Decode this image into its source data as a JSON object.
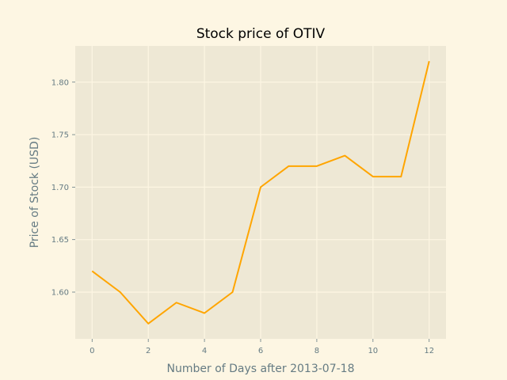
{
  "chart_data": {
    "type": "line",
    "title": "Stock price of OTIV",
    "xlabel": "Number of Days after 2013-07-18",
    "ylabel": "Price of Stock (USD)",
    "x": [
      0,
      1,
      2,
      3,
      4,
      5,
      6,
      7,
      8,
      9,
      10,
      11,
      12
    ],
    "series": [
      {
        "values": [
          1.62,
          1.6,
          1.57,
          1.59,
          1.58,
          1.6,
          1.7,
          1.72,
          1.72,
          1.73,
          1.71,
          1.71,
          1.82
        ],
        "color": "#ffa500"
      }
    ],
    "xlim": [
      -0.6,
      12.6
    ],
    "ylim": [
      1.5555,
      1.8345
    ],
    "xticks": [
      0,
      2,
      4,
      6,
      8,
      10,
      12
    ],
    "xtick_labels": [
      "0",
      "2",
      "4",
      "6",
      "8",
      "10",
      "12"
    ],
    "yticks": [
      1.6,
      1.65,
      1.7,
      1.75,
      1.8
    ],
    "ytick_labels": [
      "1.60",
      "1.65",
      "1.70",
      "1.75",
      "1.80"
    ],
    "grid": true,
    "colors": {
      "figure_background": "#fdf6e3",
      "plot_background": "#eee8d5",
      "grid": "#fdf6e3",
      "tick_text": "#657b83"
    }
  }
}
